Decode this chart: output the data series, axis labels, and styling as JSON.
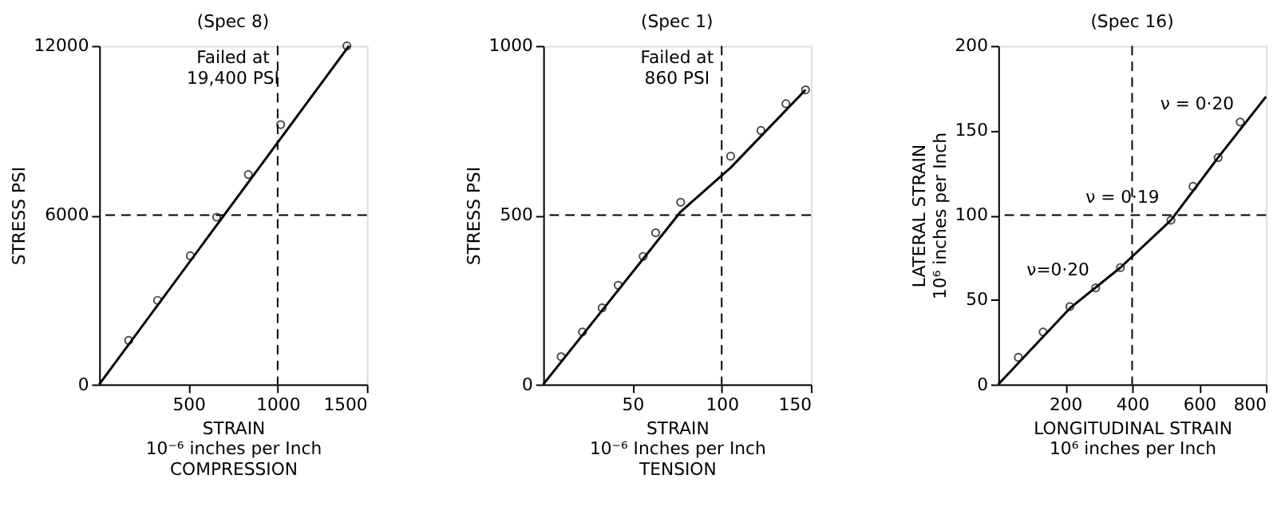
{
  "chart_data": [
    {
      "type": "scatter",
      "title": "(Spec 8)",
      "xlabel": "STRAIN\n10⁻⁶ inches per Inch\nCOMPRESSION",
      "ylabel": "STRESS  PSI",
      "x": [
        165,
        327,
        511,
        658,
        836,
        1017,
        1388
      ],
      "series": [
        {
          "color": "#000000",
          "values": [
            1560,
            2980,
            4560,
            5930,
            7440,
            9210,
            12000
          ],
          "marker": "circle"
        },
        {
          "type": "line",
          "color": "#000000",
          "x": [
            0,
            1400
          ],
          "values": [
            0,
            12000
          ],
          "line_style": "solid"
        }
      ],
      "xlim": [
        0,
        1500
      ],
      "xticks": [
        500,
        1000,
        1500
      ],
      "ylim": [
        0,
        12000
      ],
      "yticks": [
        0,
        6000,
        12000
      ],
      "ref_lines": [
        {
          "axis": "y",
          "value": 6000,
          "line_style": "dashed",
          "color": "#000000"
        },
        {
          "axis": "x",
          "value": 1000,
          "line_style": "dashed",
          "color": "#000000"
        }
      ],
      "annotations": [
        "Failed at\n19,400 PSI"
      ],
      "grid": false
    },
    {
      "type": "scatter",
      "title": "(Spec 1)",
      "xlabel": "STRAIN\n10⁻⁶ Inches per Inch\nTENSION",
      "ylabel": "STRESS  PSI",
      "x": [
        10,
        22,
        33,
        42,
        56,
        63,
        77,
        105,
        122,
        136,
        147
      ],
      "series": [
        {
          "color": "#000000",
          "values": [
            82,
            155,
            226,
            293,
            378,
            448,
            538,
            674,
            750,
            829,
            870
          ],
          "marker": "circle"
        },
        {
          "type": "line",
          "color": "#000000",
          "x": [
            0,
            77,
            105,
            147
          ],
          "values": [
            0,
            510,
            640,
            870
          ],
          "line_style": "solid"
        }
      ],
      "xlim": [
        0,
        150
      ],
      "xticks": [
        50,
        100,
        150
      ],
      "ylim": [
        0,
        1000
      ],
      "yticks": [
        0,
        500,
        1000
      ],
      "ref_lines": [
        {
          "axis": "y",
          "value": 500,
          "line_style": "dashed",
          "color": "#000000"
        },
        {
          "axis": "x",
          "value": 100,
          "line_style": "dashed",
          "color": "#000000"
        }
      ],
      "annotations": [
        "Failed at\n860 PSI"
      ],
      "grid": false
    },
    {
      "type": "scatter",
      "title": "(Spec 16)",
      "xlabel": "LONGITUDINAL   STRAIN\n10⁶ inches per Inch",
      "ylabel": "LATERAL  STRAIN\n10⁶ inches per Inch",
      "x": [
        60,
        134,
        214,
        291,
        365,
        516,
        582,
        657,
        723
      ],
      "series": [
        {
          "color": "#000000",
          "values": [
            16,
            31,
            46,
            57,
            69,
            97,
            117,
            134,
            155
          ],
          "marker": "circle"
        },
        {
          "type": "line",
          "color": "#000000",
          "x": [
            0,
            214,
            365,
            516,
            657,
            800
          ],
          "values": [
            0,
            45,
            69,
            97,
            134,
            170
          ],
          "line_style": "solid"
        }
      ],
      "xlim": [
        0,
        800
      ],
      "xticks": [
        200,
        400,
        600,
        800
      ],
      "ylim": [
        0,
        200
      ],
      "yticks": [
        0,
        50,
        100,
        150,
        200
      ],
      "ref_lines": [
        {
          "axis": "y",
          "value": 100,
          "line_style": "dashed",
          "color": "#000000"
        },
        {
          "axis": "x",
          "value": 400,
          "line_style": "dashed",
          "color": "#000000"
        }
      ],
      "annotations": [
        {
          "text": "ν = 0·20",
          "x": 723,
          "y": 155
        },
        {
          "text": "ν = 0·19",
          "x": 500,
          "y": 100
        },
        {
          "text": "ν=0·20",
          "x": 291,
          "y": 57
        }
      ],
      "grid": false
    }
  ]
}
